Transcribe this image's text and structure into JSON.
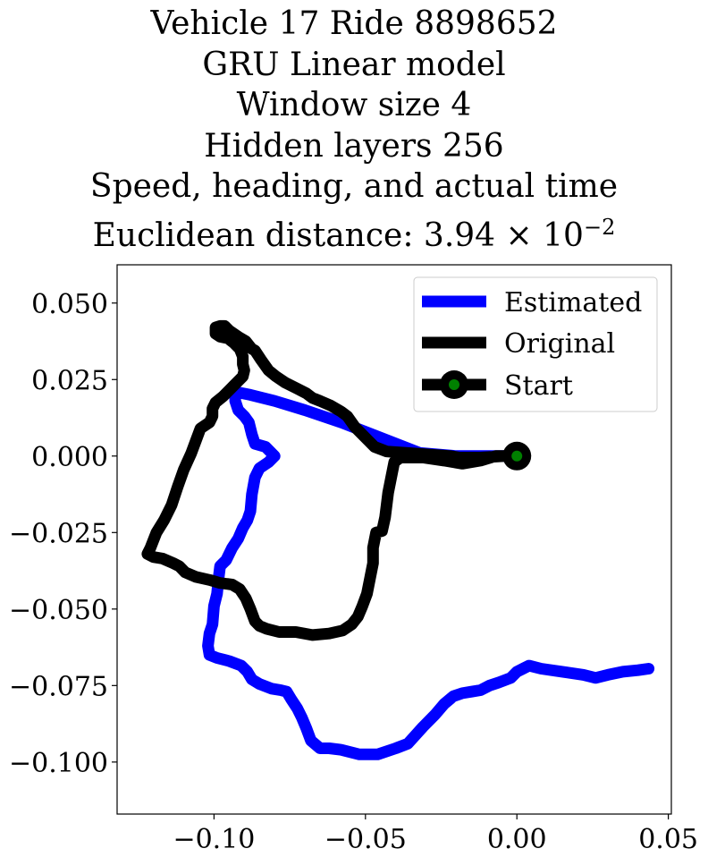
{
  "chart_data": {
    "type": "line",
    "title_lines": [
      "Vehicle 17 Ride 8898652",
      "GRU Linear model",
      "Window size 4",
      "Hidden layers 256",
      "Speed, heading, and actual time"
    ],
    "title_metric_prefix": "Euclidean distance: 3.94",
    "title_metric_times": "×",
    "title_metric_base": "10",
    "title_metric_exponent": "−2",
    "xlim": [
      -0.132,
      0.051
    ],
    "ylim": [
      -0.117,
      0.0625
    ],
    "x_ticks": [
      {
        "value": -0.1,
        "label": "−0.10"
      },
      {
        "value": -0.05,
        "label": "−0.05"
      },
      {
        "value": 0.0,
        "label": "0.00"
      },
      {
        "value": 0.05,
        "label": "0.05"
      }
    ],
    "y_ticks": [
      {
        "value": 0.05,
        "label": "0.050"
      },
      {
        "value": 0.025,
        "label": "0.025"
      },
      {
        "value": 0.0,
        "label": "0.000"
      },
      {
        "value": -0.025,
        "label": "−0.025"
      },
      {
        "value": -0.05,
        "label": "−0.050"
      },
      {
        "value": -0.075,
        "label": "−0.075"
      },
      {
        "value": -0.1,
        "label": "−0.100"
      }
    ],
    "grid": false,
    "legend_position": "top-right",
    "series": [
      {
        "name": "Estimated",
        "color": "#0000ff",
        "points": [
          [
            0.0,
            0.0
          ],
          [
            -0.008,
            0.0
          ],
          [
            -0.02,
            0.0
          ],
          [
            -0.032,
            0.001
          ],
          [
            -0.045,
            0.006
          ],
          [
            -0.058,
            0.011
          ],
          [
            -0.07,
            0.015
          ],
          [
            -0.08,
            0.018
          ],
          [
            -0.088,
            0.02
          ],
          [
            -0.093,
            0.021
          ],
          [
            -0.093,
            0.018
          ],
          [
            -0.092,
            0.015
          ],
          [
            -0.09,
            0.013
          ],
          [
            -0.0885,
            0.011
          ],
          [
            -0.0875,
            0.007
          ],
          [
            -0.0865,
            0.004
          ],
          [
            -0.083,
            0.003
          ],
          [
            -0.08,
            0.0
          ],
          [
            -0.082,
            -0.002
          ],
          [
            -0.085,
            -0.004
          ],
          [
            -0.0865,
            -0.007
          ],
          [
            -0.0875,
            -0.0125
          ],
          [
            -0.088,
            -0.018
          ],
          [
            -0.089,
            -0.021
          ],
          [
            -0.0905,
            -0.0235
          ],
          [
            -0.092,
            -0.027
          ],
          [
            -0.094,
            -0.03
          ],
          [
            -0.096,
            -0.034
          ],
          [
            -0.098,
            -0.036
          ],
          [
            -0.0985,
            -0.04
          ],
          [
            -0.099,
            -0.045
          ],
          [
            -0.1,
            -0.049
          ],
          [
            -0.1005,
            -0.055
          ],
          [
            -0.1015,
            -0.058
          ],
          [
            -0.102,
            -0.062
          ],
          [
            -0.1015,
            -0.065
          ],
          [
            -0.099,
            -0.066
          ],
          [
            -0.095,
            -0.067
          ],
          [
            -0.091,
            -0.0685
          ],
          [
            -0.089,
            -0.0705
          ],
          [
            -0.0875,
            -0.073
          ],
          [
            -0.085,
            -0.0745
          ],
          [
            -0.081,
            -0.076
          ],
          [
            -0.078,
            -0.0765
          ],
          [
            -0.076,
            -0.077
          ],
          [
            -0.0745,
            -0.0795
          ],
          [
            -0.0725,
            -0.0825
          ],
          [
            -0.071,
            -0.0855
          ],
          [
            -0.0695,
            -0.089
          ],
          [
            -0.068,
            -0.093
          ],
          [
            -0.065,
            -0.0955
          ],
          [
            -0.062,
            -0.0955
          ],
          [
            -0.058,
            -0.096
          ],
          [
            -0.052,
            -0.0975
          ],
          [
            -0.046,
            -0.0975
          ],
          [
            -0.04,
            -0.0955
          ],
          [
            -0.036,
            -0.094
          ],
          [
            -0.031,
            -0.0885
          ],
          [
            -0.027,
            -0.0845
          ],
          [
            -0.024,
            -0.081
          ],
          [
            -0.021,
            -0.0785
          ],
          [
            -0.018,
            -0.0775
          ],
          [
            -0.015,
            -0.077
          ],
          [
            -0.012,
            -0.0765
          ],
          [
            -0.009,
            -0.075
          ],
          [
            -0.006,
            -0.074
          ],
          [
            -0.002,
            -0.0725
          ],
          [
            0.0,
            -0.0705
          ],
          [
            0.002,
            -0.0695
          ],
          [
            0.004,
            -0.0685
          ],
          [
            0.008,
            -0.0695
          ],
          [
            0.015,
            -0.0705
          ],
          [
            0.022,
            -0.0715
          ],
          [
            0.026,
            -0.0725
          ],
          [
            0.03,
            -0.0715
          ],
          [
            0.035,
            -0.0705
          ],
          [
            0.04,
            -0.07
          ],
          [
            0.0435,
            -0.0695
          ]
        ]
      },
      {
        "name": "Original",
        "color": "#000000",
        "points": [
          [
            0.0,
            0.0
          ],
          [
            -0.004,
            0.0
          ],
          [
            -0.012,
            -0.0005
          ],
          [
            -0.019,
            -0.0005
          ],
          [
            -0.022,
            0.0
          ],
          [
            -0.029,
            0.0005
          ],
          [
            -0.036,
            0.001
          ],
          [
            -0.043,
            0.0015
          ],
          [
            -0.047,
            0.003
          ],
          [
            -0.049,
            0.005
          ],
          [
            -0.051,
            0.007
          ],
          [
            -0.0535,
            0.0095
          ],
          [
            -0.056,
            0.013
          ],
          [
            -0.058,
            0.0145
          ],
          [
            -0.0615,
            0.0165
          ],
          [
            -0.065,
            0.018
          ],
          [
            -0.0675,
            0.019
          ],
          [
            -0.0695,
            0.0205
          ],
          [
            -0.0725,
            0.022
          ],
          [
            -0.0765,
            0.024
          ],
          [
            -0.0795,
            0.026
          ],
          [
            -0.082,
            0.028
          ],
          [
            -0.0845,
            0.0315
          ],
          [
            -0.0865,
            0.0345
          ],
          [
            -0.0875,
            0.035
          ],
          [
            -0.0895,
            0.0375
          ],
          [
            -0.092,
            0.039
          ],
          [
            -0.095,
            0.041
          ],
          [
            -0.0965,
            0.0425
          ],
          [
            -0.098,
            0.0425
          ],
          [
            -0.0995,
            0.042
          ],
          [
            -0.0995,
            0.04
          ],
          [
            -0.098,
            0.039
          ],
          [
            -0.0955,
            0.0385
          ],
          [
            -0.0935,
            0.037
          ],
          [
            -0.0915,
            0.035
          ],
          [
            -0.0905,
            0.0325
          ],
          [
            -0.0905,
            0.03
          ],
          [
            -0.09,
            0.028
          ],
          [
            -0.0905,
            0.026
          ],
          [
            -0.0935,
            0.023
          ],
          [
            -0.097,
            0.0195
          ],
          [
            -0.0995,
            0.0175
          ],
          [
            -0.1005,
            0.0155
          ],
          [
            -0.1005,
            0.013
          ],
          [
            -0.1015,
            0.011
          ],
          [
            -0.1045,
            0.009
          ],
          [
            -0.106,
            0.005
          ],
          [
            -0.1075,
            0.001
          ],
          [
            -0.11,
            -0.0045
          ],
          [
            -0.112,
            -0.01
          ],
          [
            -0.114,
            -0.016
          ],
          [
            -0.1165,
            -0.021
          ],
          [
            -0.119,
            -0.025
          ],
          [
            -0.121,
            -0.03
          ],
          [
            -0.122,
            -0.032
          ],
          [
            -0.12,
            -0.033
          ],
          [
            -0.117,
            -0.0335
          ],
          [
            -0.1135,
            -0.035
          ],
          [
            -0.1115,
            -0.036
          ],
          [
            -0.1095,
            -0.038
          ],
          [
            -0.106,
            -0.0395
          ],
          [
            -0.1015,
            -0.0405
          ],
          [
            -0.098,
            -0.0415
          ],
          [
            -0.094,
            -0.042
          ],
          [
            -0.0915,
            -0.0435
          ],
          [
            -0.0895,
            -0.0465
          ],
          [
            -0.088,
            -0.05
          ],
          [
            -0.0865,
            -0.054
          ],
          [
            -0.085,
            -0.0555
          ],
          [
            -0.0825,
            -0.0565
          ],
          [
            -0.0785,
            -0.0575
          ],
          [
            -0.073,
            -0.0575
          ],
          [
            -0.0675,
            -0.0585
          ],
          [
            -0.062,
            -0.058
          ],
          [
            -0.0575,
            -0.057
          ],
          [
            -0.0545,
            -0.055
          ],
          [
            -0.0525,
            -0.0525
          ],
          [
            -0.051,
            -0.049
          ],
          [
            -0.0495,
            -0.045
          ],
          [
            -0.0485,
            -0.04
          ],
          [
            -0.0475,
            -0.035
          ],
          [
            -0.0475,
            -0.03
          ],
          [
            -0.0465,
            -0.025
          ],
          [
            -0.0445,
            -0.0245
          ],
          [
            -0.0435,
            -0.02
          ],
          [
            -0.0425,
            -0.012
          ],
          [
            -0.0415,
            -0.007
          ],
          [
            -0.0405,
            -0.002
          ],
          [
            -0.0385,
            -0.0005
          ],
          [
            -0.031,
            -0.0005
          ],
          [
            -0.024,
            -0.0015
          ],
          [
            -0.018,
            -0.0025
          ],
          [
            -0.012,
            -0.0015
          ],
          [
            -0.007,
            0.0
          ],
          [
            -0.003,
            0.0
          ],
          [
            0.0,
            0.0
          ]
        ]
      }
    ],
    "start": {
      "name": "Start",
      "x": 0.0,
      "y": 0.0,
      "outer_color": "#000000",
      "inner_color": "#008000"
    }
  }
}
